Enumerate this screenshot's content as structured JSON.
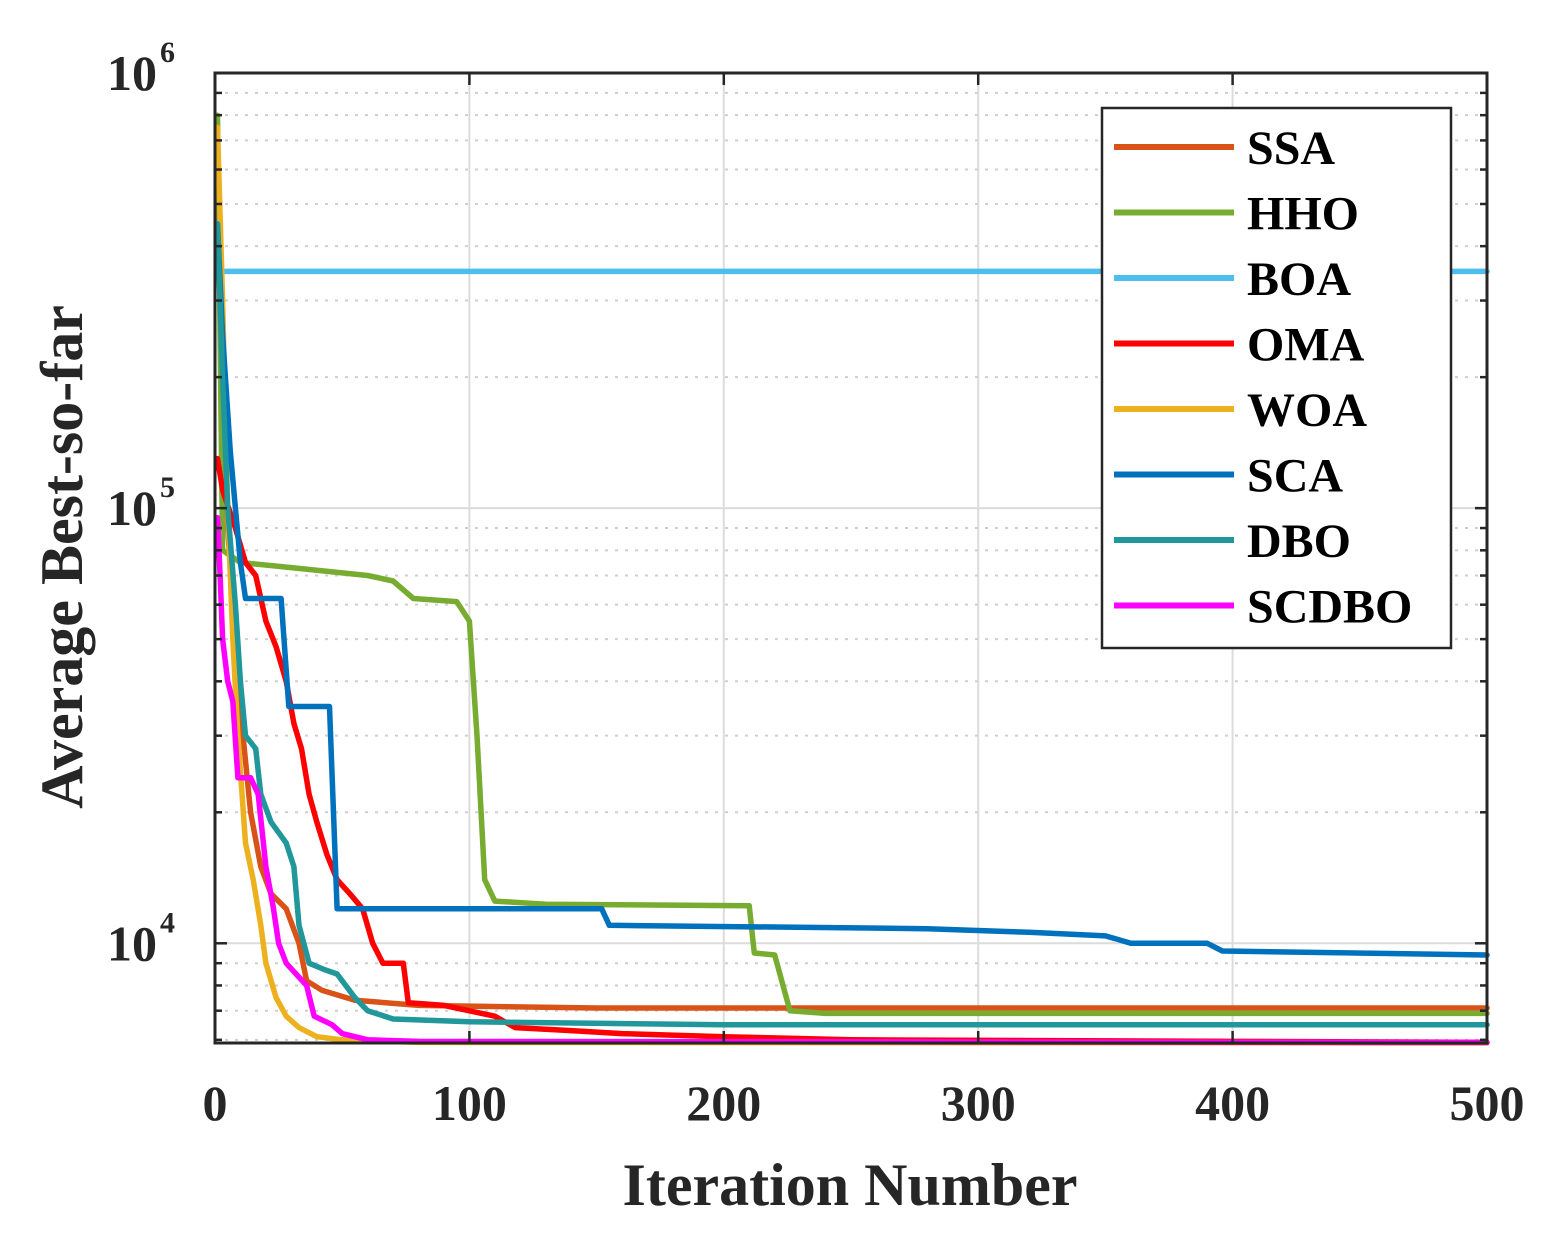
{
  "chart_data": {
    "type": "line",
    "title": "",
    "xlabel": "Iteration Number",
    "ylabel": "Average Best-so-far",
    "xlim": [
      0,
      500
    ],
    "ylim": [
      5900,
      1000000
    ],
    "yscale": "log",
    "xticks": [
      0,
      100,
      200,
      300,
      400,
      500
    ],
    "xtick_labels": [
      "0",
      "100",
      "200",
      "300",
      "400",
      "500"
    ],
    "yticks": [
      {
        "value": 10000,
        "base": "10",
        "exp": "4"
      },
      {
        "value": 100000,
        "base": "10",
        "exp": "5"
      },
      {
        "value": 1000000,
        "base": "10",
        "exp": "6"
      }
    ],
    "grid": true,
    "legend_position": "top-right",
    "series": [
      {
        "name": "SSA",
        "color": "#d95319",
        "points": [
          [
            1,
            700000
          ],
          [
            3,
            150000
          ],
          [
            5,
            90000
          ],
          [
            7,
            60000
          ],
          [
            9,
            45000
          ],
          [
            11,
            30000
          ],
          [
            14,
            20000
          ],
          [
            18,
            15000
          ],
          [
            22,
            13000
          ],
          [
            28,
            12000
          ],
          [
            33,
            10000
          ],
          [
            36,
            8200
          ],
          [
            42,
            7800
          ],
          [
            55,
            7400
          ],
          [
            80,
            7200
          ],
          [
            150,
            7100
          ],
          [
            500,
            7100
          ]
        ]
      },
      {
        "name": "HHO",
        "color": "#77ac30",
        "points": [
          [
            1,
            800000
          ],
          [
            3,
            80000
          ],
          [
            10,
            75000
          ],
          [
            30,
            73000
          ],
          [
            60,
            70000
          ],
          [
            70,
            68000
          ],
          [
            78,
            62000
          ],
          [
            95,
            61000
          ],
          [
            100,
            55000
          ],
          [
            103,
            30000
          ],
          [
            106,
            14000
          ],
          [
            110,
            12500
          ],
          [
            130,
            12300
          ],
          [
            210,
            12200
          ],
          [
            212,
            9500
          ],
          [
            220,
            9400
          ],
          [
            226,
            7000
          ],
          [
            240,
            6900
          ],
          [
            500,
            6900
          ]
        ]
      },
      {
        "name": "BOA",
        "color": "#4dbeee",
        "points": [
          [
            1,
            400000
          ],
          [
            2,
            350000
          ],
          [
            500,
            350000
          ]
        ]
      },
      {
        "name": "OMA",
        "color": "#ff0000",
        "points": [
          [
            1,
            130000
          ],
          [
            3,
            110000
          ],
          [
            8,
            90000
          ],
          [
            12,
            75000
          ],
          [
            16,
            70000
          ],
          [
            20,
            55000
          ],
          [
            24,
            48000
          ],
          [
            28,
            40000
          ],
          [
            31,
            32000
          ],
          [
            34,
            28000
          ],
          [
            37,
            22000
          ],
          [
            40,
            19000
          ],
          [
            44,
            16000
          ],
          [
            48,
            14000
          ],
          [
            53,
            13000
          ],
          [
            58,
            12000
          ],
          [
            62,
            10000
          ],
          [
            66,
            9000
          ],
          [
            74,
            9000
          ],
          [
            76,
            7300
          ],
          [
            90,
            7200
          ],
          [
            110,
            6800
          ],
          [
            118,
            6400
          ],
          [
            140,
            6300
          ],
          [
            160,
            6200
          ],
          [
            200,
            6100
          ],
          [
            250,
            6000
          ],
          [
            400,
            5950
          ],
          [
            500,
            5920
          ]
        ]
      },
      {
        "name": "WOA",
        "color": "#edb120",
        "points": [
          [
            1,
            750000
          ],
          [
            3,
            300000
          ],
          [
            5,
            100000
          ],
          [
            7,
            50000
          ],
          [
            9,
            30000
          ],
          [
            12,
            17000
          ],
          [
            15,
            14000
          ],
          [
            18,
            11000
          ],
          [
            20,
            9000
          ],
          [
            24,
            7500
          ],
          [
            28,
            6800
          ],
          [
            33,
            6400
          ],
          [
            40,
            6100
          ],
          [
            50,
            6000
          ],
          [
            80,
            5920
          ],
          [
            500,
            5900
          ]
        ]
      },
      {
        "name": "SCA",
        "color": "#0072bd",
        "points": [
          [
            1,
            450000
          ],
          [
            3,
            250000
          ],
          [
            6,
            135000
          ],
          [
            8,
            100000
          ],
          [
            10,
            75000
          ],
          [
            12,
            62000
          ],
          [
            26,
            62000
          ],
          [
            29,
            35000
          ],
          [
            45,
            35000
          ],
          [
            48,
            12000
          ],
          [
            100,
            12000
          ],
          [
            152,
            12000
          ],
          [
            155,
            11000
          ],
          [
            280,
            10800
          ],
          [
            320,
            10600
          ],
          [
            350,
            10400
          ],
          [
            355,
            10200
          ],
          [
            360,
            10000
          ],
          [
            390,
            10000
          ],
          [
            396,
            9600
          ],
          [
            500,
            9400
          ]
        ]
      },
      {
        "name": "DBO",
        "color": "#20979a",
        "points": [
          [
            1,
            450000
          ],
          [
            3,
            200000
          ],
          [
            5,
            100000
          ],
          [
            8,
            60000
          ],
          [
            10,
            40000
          ],
          [
            12,
            30000
          ],
          [
            16,
            28000
          ],
          [
            18,
            22000
          ],
          [
            22,
            19000
          ],
          [
            28,
            17000
          ],
          [
            31,
            15000
          ],
          [
            33,
            11000
          ],
          [
            37,
            9000
          ],
          [
            43,
            8700
          ],
          [
            48,
            8500
          ],
          [
            55,
            7500
          ],
          [
            60,
            7000
          ],
          [
            70,
            6700
          ],
          [
            100,
            6600
          ],
          [
            200,
            6500
          ],
          [
            500,
            6500
          ]
        ]
      },
      {
        "name": "SCDBO",
        "color": "#ff00ff",
        "points": [
          [
            1,
            95000
          ],
          [
            2,
            70000
          ],
          [
            3,
            50000
          ],
          [
            5,
            40000
          ],
          [
            7,
            36000
          ],
          [
            9,
            24000
          ],
          [
            14,
            24000
          ],
          [
            17,
            22000
          ],
          [
            20,
            15000
          ],
          [
            23,
            12000
          ],
          [
            25,
            10000
          ],
          [
            28,
            9000
          ],
          [
            36,
            8000
          ],
          [
            39,
            6800
          ],
          [
            46,
            6500
          ],
          [
            50,
            6200
          ],
          [
            60,
            6000
          ],
          [
            80,
            5950
          ],
          [
            500,
            5920
          ]
        ]
      }
    ]
  }
}
